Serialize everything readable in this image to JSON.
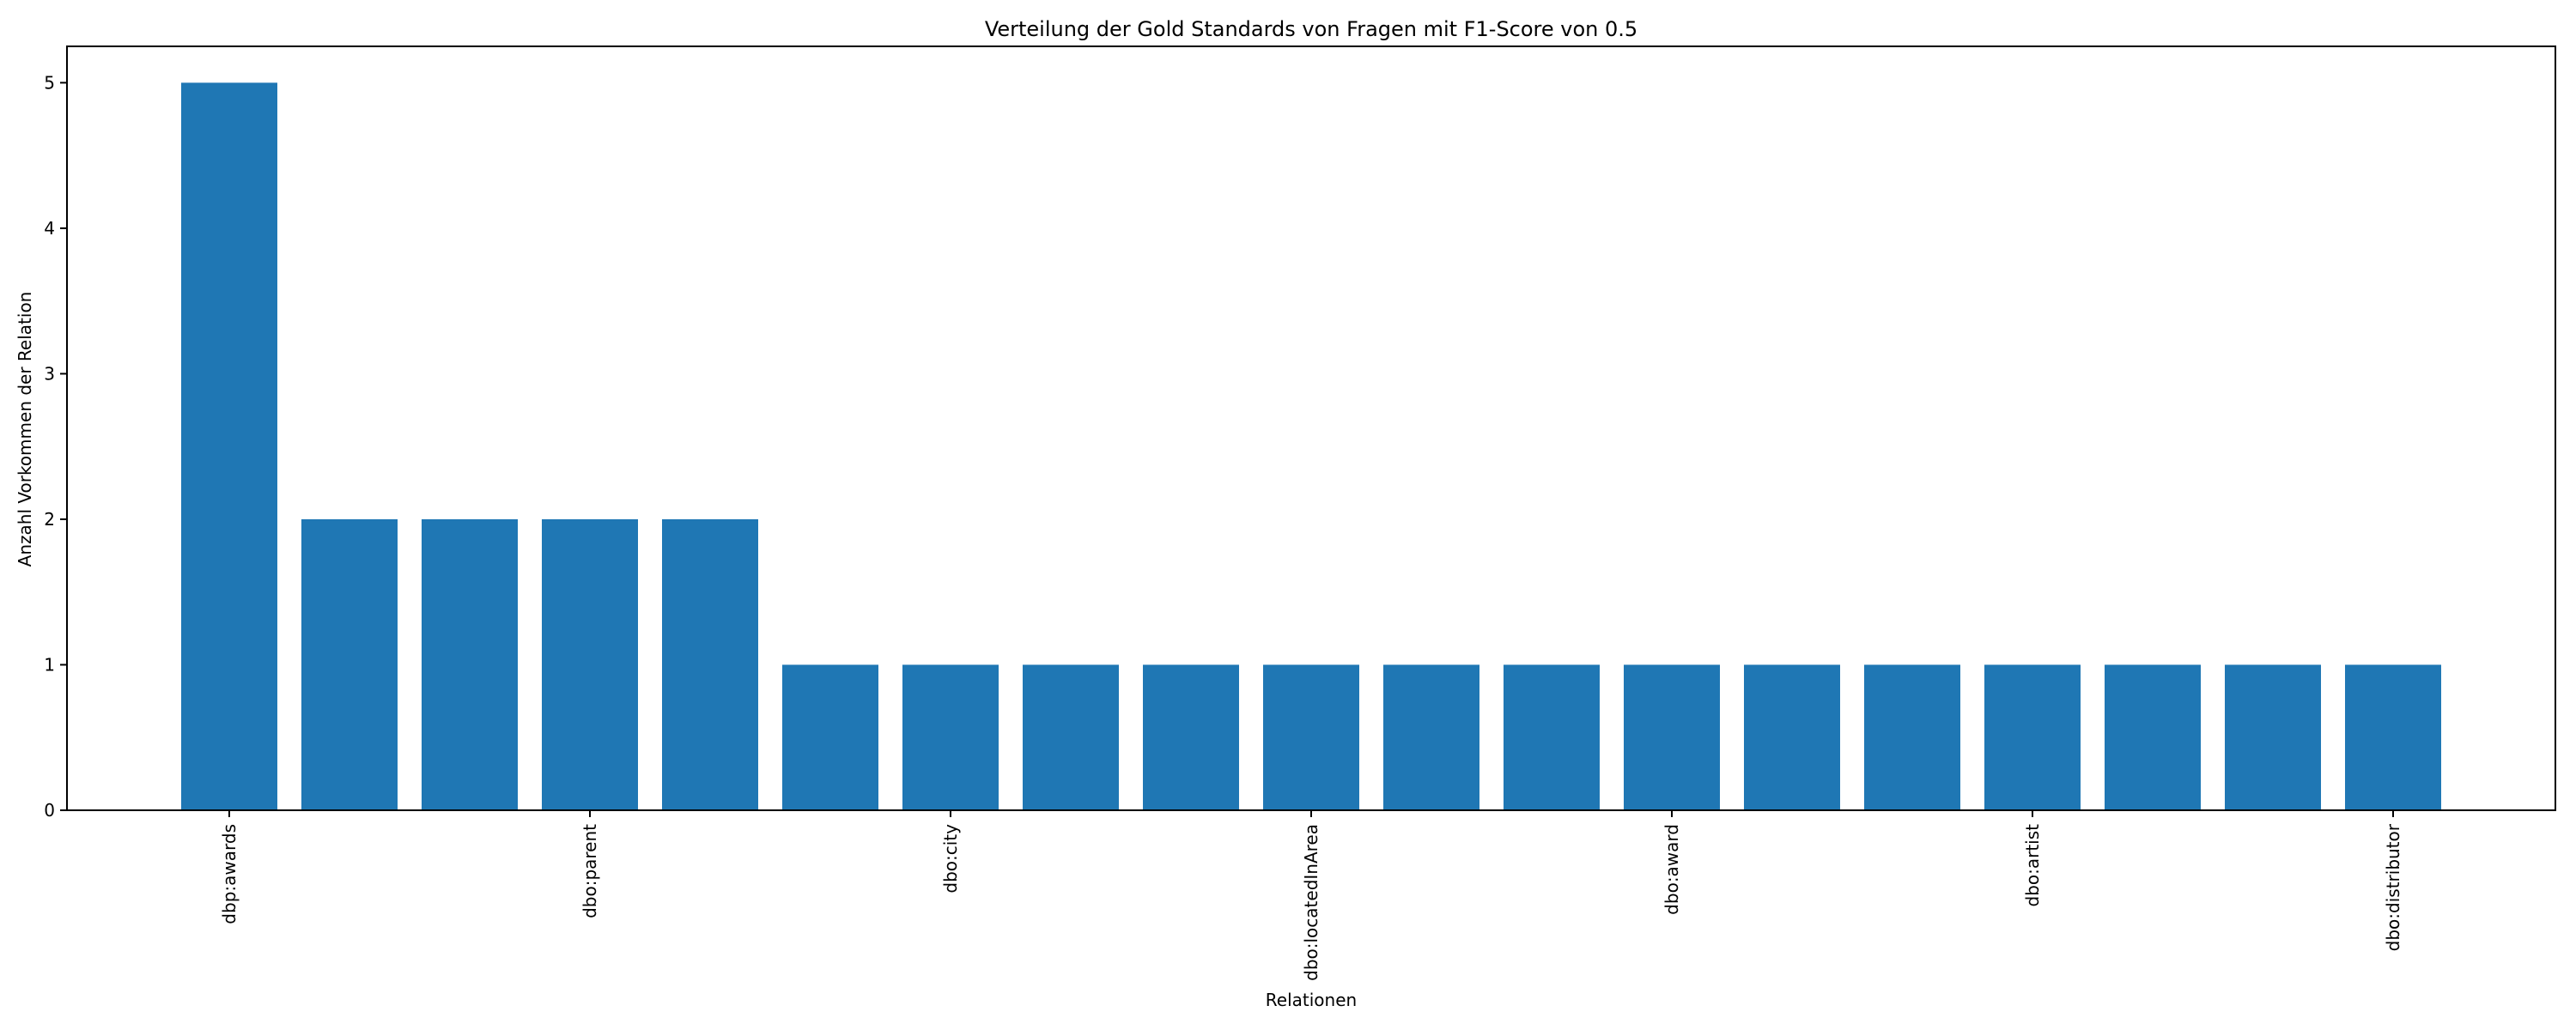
{
  "chart_data": {
    "type": "bar",
    "title": "Verteilung der Gold Standards von Fragen mit F1-Score von 0.5",
    "xlabel": "Relationen",
    "ylabel": "Anzahl Vorkommen der Relation",
    "ylim": [
      0,
      5.25
    ],
    "yticks": [
      0,
      1,
      2,
      3,
      4,
      5
    ],
    "values": [
      5,
      2,
      2,
      2,
      2,
      1,
      1,
      1,
      1,
      1,
      1,
      1,
      1,
      1,
      1,
      1,
      1,
      1,
      1
    ],
    "x_tick_labels": [
      {
        "index": 0,
        "label": "dbp:awards"
      },
      {
        "index": 3,
        "label": "dbo:parent"
      },
      {
        "index": 6,
        "label": "dbo:city"
      },
      {
        "index": 9,
        "label": "dbo:locatedInArea"
      },
      {
        "index": 12,
        "label": "dbo:award"
      },
      {
        "index": 15,
        "label": "dbo:artist"
      },
      {
        "index": 18,
        "label": "dbo:distributor"
      }
    ],
    "bar_color": "#1f77b4",
    "grid": false,
    "legend": false
  }
}
